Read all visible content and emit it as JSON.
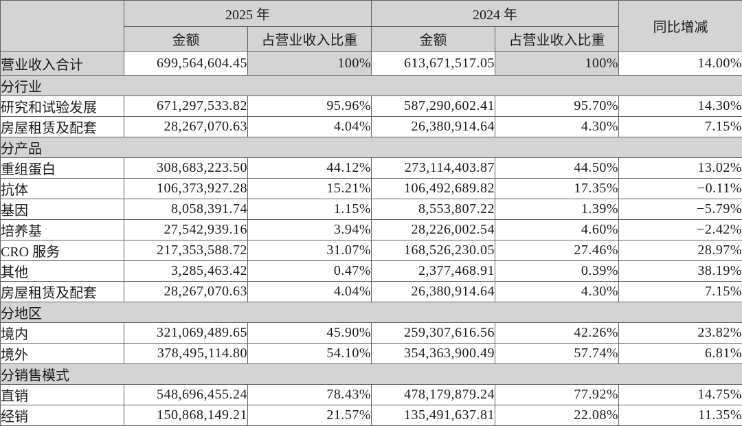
{
  "colors": {
    "cell_shading": "#d4d4d4",
    "border": "#5f5f5f",
    "text": "#1c1c1c"
  },
  "table": {
    "header": {
      "corner": "",
      "year_2025": "2025 年",
      "year_2024": "2024 年",
      "amount": "金额",
      "ratio": "占营业收入比重",
      "yoy": "同比增减"
    },
    "rows": [
      {
        "type": "total",
        "label": "营业收入合计",
        "amount_2025": "699,564,604.45",
        "ratio_2025": "100%",
        "amount_2024": "613,671,517.05",
        "ratio_2024": "100%",
        "yoy": "14.00%"
      },
      {
        "type": "section",
        "label": "分行业"
      },
      {
        "type": "data",
        "label": "研究和试验发展",
        "amount_2025": "671,297,533.82",
        "ratio_2025": "95.96%",
        "amount_2024": "587,290,602.41",
        "ratio_2024": "95.70%",
        "yoy": "14.30%"
      },
      {
        "type": "data",
        "label": "房屋租赁及配套",
        "amount_2025": "28,267,070.63",
        "ratio_2025": "4.04%",
        "amount_2024": "26,380,914.64",
        "ratio_2024": "4.30%",
        "yoy": "7.15%"
      },
      {
        "type": "section",
        "label": "分产品"
      },
      {
        "type": "data",
        "label": "重组蛋白",
        "amount_2025": "308,683,223.50",
        "ratio_2025": "44.12%",
        "amount_2024": "273,114,403.87",
        "ratio_2024": "44.50%",
        "yoy": "13.02%"
      },
      {
        "type": "data",
        "label": "抗体",
        "amount_2025": "106,373,927.28",
        "ratio_2025": "15.21%",
        "amount_2024": "106,492,689.82",
        "ratio_2024": "17.35%",
        "yoy": "−0.11%"
      },
      {
        "type": "data",
        "label": "基因",
        "amount_2025": "8,058,391.74",
        "ratio_2025": "1.15%",
        "amount_2024": "8,553,807.22",
        "ratio_2024": "1.39%",
        "yoy": "−5.79%"
      },
      {
        "type": "data",
        "label": "培养基",
        "amount_2025": "27,542,939.16",
        "ratio_2025": "3.94%",
        "amount_2024": "28,226,002.54",
        "ratio_2024": "4.60%",
        "yoy": "−2.42%"
      },
      {
        "type": "data",
        "label": "CRO 服务",
        "amount_2025": "217,353,588.72",
        "ratio_2025": "31.07%",
        "amount_2024": "168,526,230.05",
        "ratio_2024": "27.46%",
        "yoy": "28.97%"
      },
      {
        "type": "data",
        "label": "其他",
        "amount_2025": "3,285,463.42",
        "ratio_2025": "0.47%",
        "amount_2024": "2,377,468.91",
        "ratio_2024": "0.39%",
        "yoy": "38.19%"
      },
      {
        "type": "data",
        "label": "房屋租赁及配套",
        "amount_2025": "28,267,070.63",
        "ratio_2025": "4.04%",
        "amount_2024": "26,380,914.64",
        "ratio_2024": "4.30%",
        "yoy": "7.15%"
      },
      {
        "type": "section",
        "label": "分地区"
      },
      {
        "type": "data",
        "label": "境内",
        "amount_2025": "321,069,489.65",
        "ratio_2025": "45.90%",
        "amount_2024": "259,307,616.56",
        "ratio_2024": "42.26%",
        "yoy": "23.82%"
      },
      {
        "type": "data",
        "label": "境外",
        "amount_2025": "378,495,114.80",
        "ratio_2025": "54.10%",
        "amount_2024": "354,363,900.49",
        "ratio_2024": "57.74%",
        "yoy": "6.81%"
      },
      {
        "type": "section",
        "label": "分销售模式"
      },
      {
        "type": "data",
        "label": "直销",
        "amount_2025": "548,696,455.24",
        "ratio_2025": "78.43%",
        "amount_2024": "478,179,879.24",
        "ratio_2024": "77.92%",
        "yoy": "14.75%"
      },
      {
        "type": "data",
        "label": "经销",
        "amount_2025": "150,868,149.21",
        "ratio_2025": "21.57%",
        "amount_2024": "135,491,637.81",
        "ratio_2024": "22.08%",
        "yoy": "11.35%"
      }
    ]
  }
}
